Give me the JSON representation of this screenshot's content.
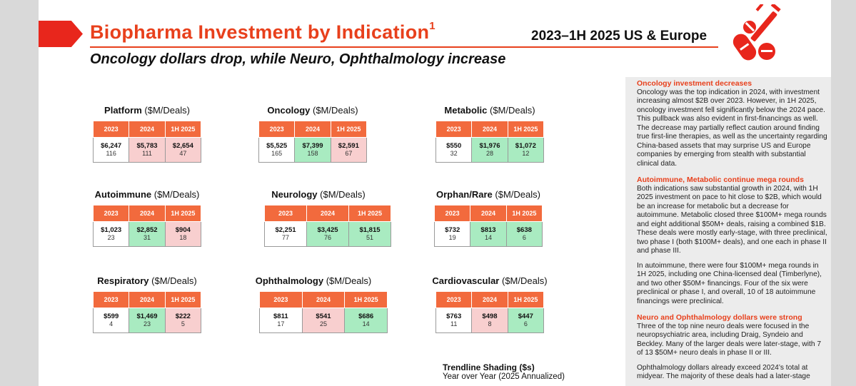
{
  "header": {
    "title": "Biopharma Investment by Indication",
    "title_footnote": "1",
    "period": "2023–1H 2025 US & Europe",
    "subtitle": "Oncology dollars drop, while Neuro, Ophthalmology increase",
    "logo": "pharma-pills-syringe-icon"
  },
  "colors": {
    "accent": "#e8401c",
    "header_cell": "#f26a3d",
    "increase": "#a9ebc1",
    "decrease": "#f8cfcf"
  },
  "unit_label": "($M/Deals)",
  "columns": [
    "2023",
    "2024",
    "1H 2025"
  ],
  "indications": [
    {
      "name": "Platform",
      "cells": [
        {
          "amount": "$6,247",
          "deals": "116",
          "trend": "none"
        },
        {
          "amount": "$5,783",
          "deals": "111",
          "trend": "down"
        },
        {
          "amount": "$2,654",
          "deals": "47",
          "trend": "down"
        }
      ]
    },
    {
      "name": "Oncology",
      "cells": [
        {
          "amount": "$5,525",
          "deals": "165",
          "trend": "none"
        },
        {
          "amount": "$7,399",
          "deals": "158",
          "trend": "up"
        },
        {
          "amount": "$2,591",
          "deals": "67",
          "trend": "down"
        }
      ]
    },
    {
      "name": "Metabolic",
      "cells": [
        {
          "amount": "$550",
          "deals": "32",
          "trend": "none"
        },
        {
          "amount": "$1,976",
          "deals": "28",
          "trend": "up"
        },
        {
          "amount": "$1,072",
          "deals": "12",
          "trend": "up"
        }
      ]
    },
    {
      "name": "Autoimmune",
      "cells": [
        {
          "amount": "$1,023",
          "deals": "23",
          "trend": "none"
        },
        {
          "amount": "$2,852",
          "deals": "31",
          "trend": "up"
        },
        {
          "amount": "$904",
          "deals": "18",
          "trend": "down"
        }
      ]
    },
    {
      "name": "Neurology",
      "cells": [
        {
          "amount": "$2,251",
          "deals": "77",
          "trend": "none"
        },
        {
          "amount": "$3,425",
          "deals": "76",
          "trend": "up"
        },
        {
          "amount": "$1,815",
          "deals": "51",
          "trend": "up"
        }
      ]
    },
    {
      "name": "Orphan/Rare",
      "cells": [
        {
          "amount": "$732",
          "deals": "19",
          "trend": "none"
        },
        {
          "amount": "$813",
          "deals": "14",
          "trend": "up"
        },
        {
          "amount": "$638",
          "deals": "6",
          "trend": "up"
        }
      ]
    },
    {
      "name": "Respiratory",
      "cells": [
        {
          "amount": "$599",
          "deals": "4",
          "trend": "none"
        },
        {
          "amount": "$1,469",
          "deals": "23",
          "trend": "up"
        },
        {
          "amount": "$222",
          "deals": "5",
          "trend": "down"
        }
      ]
    },
    {
      "name": "Ophthalmology",
      "cells": [
        {
          "amount": "$811",
          "deals": "17",
          "trend": "none"
        },
        {
          "amount": "$541",
          "deals": "25",
          "trend": "down"
        },
        {
          "amount": "$686",
          "deals": "14",
          "trend": "up"
        }
      ]
    },
    {
      "name": "Cardiovascular",
      "cells": [
        {
          "amount": "$763",
          "deals": "11",
          "trend": "none"
        },
        {
          "amount": "$498",
          "deals": "8",
          "trend": "down"
        },
        {
          "amount": "$447",
          "deals": "6",
          "trend": "up"
        }
      ]
    }
  ],
  "legend": {
    "title": "Trendline Shading ($s)",
    "subtitle": "Year over Year (2025 Annualized)"
  },
  "sidebar": {
    "sections": [
      {
        "heading": "Oncology investment decreases",
        "paragraphs": [
          "Oncology was the top indication in 2024, with investment increasing almost $2B over 2023. However, in 1H 2025, oncology investment fell significantly below the 2024 pace. This pullback was also evident in first-financings as well. The decrease may partially reflect caution around finding true first-line therapies, as well as the uncertainty regarding China-based assets that may surprise US and Europe companies by emerging from stealth with substantial clinical data."
        ]
      },
      {
        "heading": "Autoimmune, Metabolic continue mega rounds",
        "paragraphs": [
          "Both indications saw substantial growth in 2024, with 1H 2025 investment on pace to hit close to $2B, which would be an increase for metabolic but a decrease for autoimmune. Metabolic closed three $100M+ mega rounds and eight additional $50M+ deals, raising a combined $1B. These deals were mostly early-stage, with three preclinical, two phase I (both $100M+ deals), and one each in phase II and phase III.",
          "In autoimmune, there were four $100M+ mega rounds in 1H 2025, including one China-licensed deal (Timberlyne), and two other $50M+ financings. Four of the six were preclinical or phase I, and overall, 10 of 18 autoimmune financings were preclinical."
        ]
      },
      {
        "heading": "Neuro and Ophthalmology dollars were strong",
        "paragraphs": [
          "Three of the top nine neuro deals were focused in the neuropsychiatric area, including Draig, Syndeio and Beckley. Many of the larger deals were later-stage, with 7 of 13 $50M+ neuro deals in phase II or III.",
          "Ophthalmology dollars already exceed 2024’s total at midyear. The majority of these deals had a later-stage"
        ]
      }
    ]
  }
}
